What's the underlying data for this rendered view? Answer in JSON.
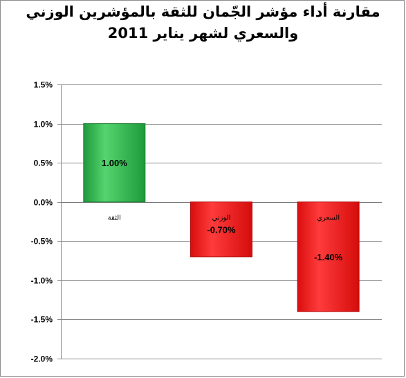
{
  "chart_data": {
    "type": "bar",
    "title_line1": "مقارنة أداء مؤشر الجّمان للثقة بالمؤشرين الوزني",
    "title_line2": "والسعري لشهر يناير 2011",
    "categories": [
      "الثقة",
      "الوزني",
      "السعري"
    ],
    "values": [
      1.0,
      -0.7,
      -1.4
    ],
    "data_labels": [
      "1.00%",
      "-0.70%",
      "-1.40%"
    ],
    "bar_colors": [
      "#27b24a",
      "#ee1c1c",
      "#ee1c1c"
    ],
    "ylim": [
      -2.0,
      1.5
    ],
    "yticks": [
      1.5,
      1.0,
      0.5,
      0.0,
      -0.5,
      -1.0,
      -1.5,
      -2.0
    ],
    "ytick_labels": [
      "1.5%",
      "1.0%",
      "0.5%",
      "0.0%",
      "-0.5%",
      "-1.0%",
      "-1.5%",
      "-2.0%"
    ],
    "grid": true,
    "legend": "none"
  }
}
